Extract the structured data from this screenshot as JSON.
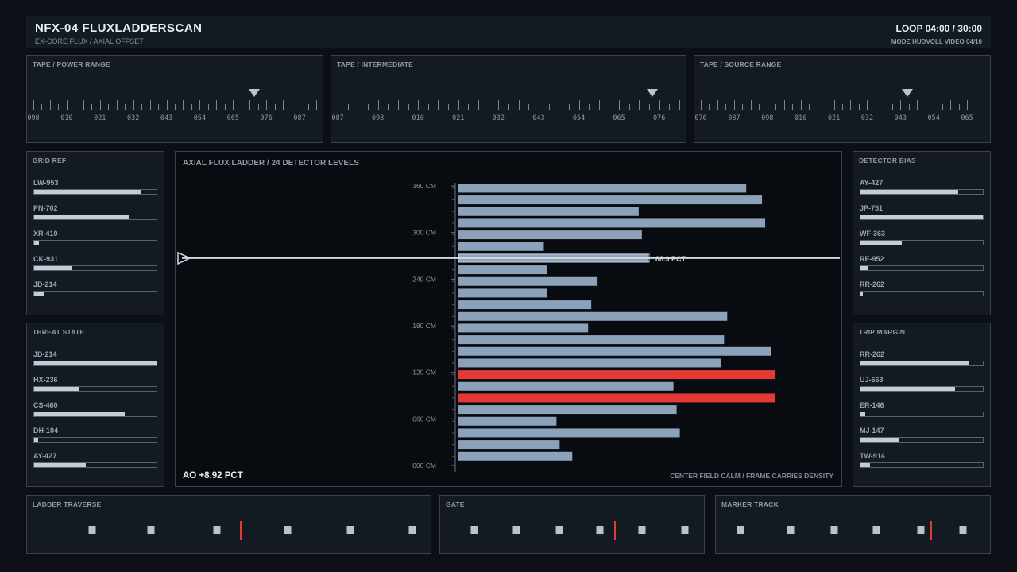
{
  "header": {
    "title": "NFX-04  FLUXLADDERSCAN",
    "subtitle": "EX-CORE FLUX / AXIAL OFFSET",
    "loop": "LOOP 04:00 / 30:00",
    "mode": "MODE HUDVOLL  VIDEO 04/10"
  },
  "tapes": [
    {
      "label": "TAPE / POWER RANGE",
      "ticks": [
        "098",
        "010",
        "021",
        "032",
        "043",
        "054",
        "065",
        "076",
        "087"
      ],
      "marker": 0.78
    },
    {
      "label": "TAPE / INTERMEDIATE",
      "ticks": [
        "087",
        "098",
        "010",
        "021",
        "032",
        "043",
        "054",
        "065",
        "076"
      ],
      "marker": 0.92
    },
    {
      "label": "TAPE / SOURCE RANGE",
      "ticks": [
        "076",
        "087",
        "098",
        "010",
        "021",
        "032",
        "043",
        "054",
        "065"
      ],
      "marker": 0.73
    }
  ],
  "grid_ref": {
    "label": "GRID REF",
    "items": [
      {
        "name": "LW-953",
        "value": 0.87
      },
      {
        "name": "PN-702",
        "value": 0.77
      },
      {
        "name": "XR-410",
        "value": 0.04
      },
      {
        "name": "CK-931",
        "value": 0.31
      },
      {
        "name": "JD-214",
        "value": 0.08
      }
    ]
  },
  "threat_state": {
    "label": "THREAT STATE",
    "items": [
      {
        "name": "JD-214",
        "value": 1.0
      },
      {
        "name": "HX-236",
        "value": 0.37
      },
      {
        "name": "CS-460",
        "value": 0.74
      },
      {
        "name": "DH-104",
        "value": 0.03
      },
      {
        "name": "AY-427",
        "value": 0.42
      }
    ]
  },
  "detector_bias": {
    "label": "DETECTOR BIAS",
    "items": [
      {
        "name": "AY-427",
        "value": 0.8
      },
      {
        "name": "JP-751",
        "value": 1.0
      },
      {
        "name": "WF-363",
        "value": 0.34
      },
      {
        "name": "RE-952",
        "value": 0.06
      },
      {
        "name": "RR-262",
        "value": 0.02
      }
    ]
  },
  "trip_margin": {
    "label": "TRIP MARGIN",
    "items": [
      {
        "name": "RR-262",
        "value": 0.88
      },
      {
        "name": "UJ-663",
        "value": 0.77
      },
      {
        "name": "ER-146",
        "value": 0.04
      },
      {
        "name": "MJ-147",
        "value": 0.31
      },
      {
        "name": "TW-914",
        "value": 0.08
      }
    ]
  },
  "main": {
    "title": "AXIAL FLUX LADDER / 24 DETECTOR LEVELS",
    "ao_readout": "AO +8.92 PCT",
    "footnote": "CENTER FIELD CALM / FRAME CARRIES DENSITY",
    "cursor_label": "88.9 PCT"
  },
  "chart_data": {
    "type": "bar",
    "orientation": "horizontal",
    "title": "AXIAL FLUX LADDER / 24 DETECTOR LEVELS",
    "y_tick_labels": [
      "000 CM",
      "060 CM",
      "120 CM",
      "180 CM",
      "240 CM",
      "300 CM",
      "360 CM"
    ],
    "ylim": [
      0,
      360
    ],
    "xlim": [
      0,
      100
    ],
    "heights_cm": [
      357,
      342,
      327,
      312,
      297,
      282,
      267,
      252,
      237,
      222,
      207,
      192,
      177,
      162,
      147,
      132,
      117,
      102,
      87,
      72,
      57,
      42,
      27,
      12
    ],
    "values": [
      91,
      96,
      57,
      97,
      58,
      27,
      60,
      28,
      44,
      28,
      42,
      85,
      41,
      84,
      99,
      83,
      100,
      68,
      100,
      69,
      31,
      70,
      32,
      36
    ],
    "alert_levels": [
      117,
      87
    ],
    "alert_color": "#e53935",
    "bar_color": "#8ca2ba",
    "cursor_height_cm": 267,
    "cursor_value": 88.9
  },
  "bottom": [
    {
      "label": "LADDER TRAVERSE",
      "marks": [
        0.15,
        0.3,
        0.47,
        0.65,
        0.81,
        0.97
      ],
      "cursor": 0.53
    },
    {
      "label": "GATE",
      "marks": [
        0.11,
        0.28,
        0.45,
        0.61,
        0.78,
        0.95
      ],
      "cursor": 0.67
    },
    {
      "label": "MARKER TRACK",
      "marks": [
        0.07,
        0.26,
        0.43,
        0.59,
        0.76,
        0.92
      ],
      "cursor": 0.8
    }
  ],
  "colors": {
    "accent_red": "#e53935",
    "bar": "#8ca2ba",
    "panel": "#141a21",
    "bg": "#0c1016"
  }
}
